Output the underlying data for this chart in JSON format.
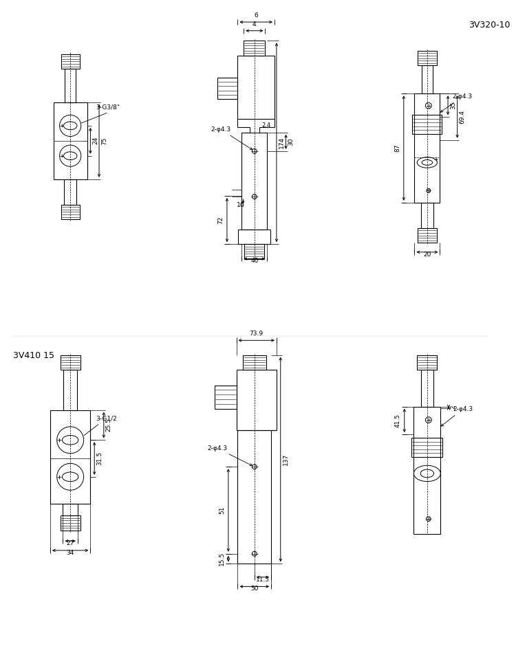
{
  "bg_color": "#ffffff",
  "lc": "#000000",
  "fs": 6.5,
  "title1": "3V320-10",
  "title2": "3V410 15",
  "phi": "φ"
}
